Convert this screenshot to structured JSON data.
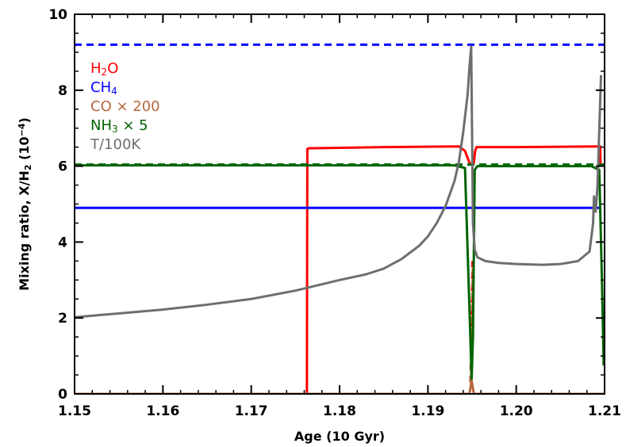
{
  "chart_data": {
    "type": "line",
    "title": "",
    "xlabel": "Age (10 Gyr)",
    "ylabel_parts": [
      "Mixing ratio, X/H",
      "2",
      " (10",
      "−4",
      ")"
    ],
    "xlim": [
      1.15,
      1.21
    ],
    "ylim": [
      0,
      10
    ],
    "xticks": [
      1.15,
      1.16,
      1.17,
      1.18,
      1.19,
      1.2,
      1.21
    ],
    "xtick_labels": [
      "1.15",
      "1.16",
      "1.17",
      "1.18",
      "1.19",
      "1.20",
      "1.21"
    ],
    "yticks": [
      0,
      2,
      4,
      6,
      8,
      10
    ],
    "ytick_labels": [
      "0",
      "2",
      "4",
      "6",
      "8",
      "10"
    ],
    "legend_position": "top-left",
    "series": [
      {
        "name": "H2O",
        "label_parts": [
          "H",
          "2",
          "O"
        ],
        "color": "#ff0000",
        "dash": false,
        "x": [
          1.15,
          1.1763,
          1.17635,
          1.1765,
          1.185,
          1.1935,
          1.1942,
          1.1946,
          1.1948,
          1.1952,
          1.19535,
          1.1955,
          1.2,
          1.2095,
          1.20955
        ],
        "y": [
          0,
          0,
          6.45,
          6.47,
          6.5,
          6.52,
          6.4,
          6.15,
          6.05,
          6.08,
          6.4,
          6.5,
          6.5,
          6.52,
          6.05
        ]
      },
      {
        "name": "H2O dashed",
        "color": "#ff0000",
        "dash": true,
        "x": [
          1.1949,
          1.19505
        ],
        "y": [
          0.2,
          3.5
        ]
      },
      {
        "name": "CH4",
        "label_parts": [
          "CH",
          "4"
        ],
        "color": "#0000ff",
        "dash": false,
        "x": [
          1.15,
          1.2095
        ],
        "y": [
          4.9,
          4.9
        ]
      },
      {
        "name": "CH4 dashed",
        "color": "#0000ff",
        "dash": true,
        "x": [
          1.15,
          1.21
        ],
        "y": [
          9.2,
          9.2
        ]
      },
      {
        "name": "CO × 200",
        "label_parts": [
          "CO × 200"
        ],
        "color": "#b8673e",
        "dash": false,
        "x": [
          1.15,
          1.1947,
          1.19495,
          1.1952,
          1.21
        ],
        "y": [
          0,
          0,
          0.35,
          0,
          0
        ]
      },
      {
        "name": "CO dashed",
        "color": "#b8673e",
        "dash": true,
        "x": [
          1.1948,
          1.1951
        ],
        "y": [
          0.3,
          3.4
        ]
      },
      {
        "name": "NH3 × 5",
        "label_parts": [
          "NH",
          "3",
          " × 5"
        ],
        "color": "#006400",
        "dash": false,
        "x": [
          1.15,
          1.193,
          1.1942,
          1.1946,
          1.19495,
          1.1951,
          1.1953,
          1.1956,
          1.2085,
          1.2094,
          1.2097,
          1.2099
        ],
        "y": [
          6.02,
          6.02,
          5.95,
          3.0,
          0.4,
          1.5,
          5.9,
          6.0,
          6.0,
          5.9,
          3.0,
          0.75
        ]
      },
      {
        "name": "NH3 dashed",
        "color": "#006400",
        "dash": true,
        "x": [
          1.15,
          1.21
        ],
        "y": [
          6.04,
          6.04
        ]
      },
      {
        "name": "T/100K",
        "label_parts": [
          "T/100K"
        ],
        "color": "#6e6e6e",
        "dash": false,
        "x": [
          1.15,
          1.155,
          1.16,
          1.165,
          1.17,
          1.175,
          1.18,
          1.183,
          1.185,
          1.187,
          1.189,
          1.19,
          1.191,
          1.192,
          1.193,
          1.1935,
          1.194,
          1.1945,
          1.1947,
          1.1949,
          1.1951,
          1.1953,
          1.1956,
          1.1965,
          1.198,
          1.2,
          1.203,
          1.205,
          1.207,
          1.2083,
          1.2087,
          1.2088,
          1.209,
          1.2092,
          1.2096
        ],
        "y": [
          2.02,
          2.12,
          2.22,
          2.35,
          2.5,
          2.72,
          3.0,
          3.15,
          3.3,
          3.55,
          3.9,
          4.15,
          4.5,
          4.95,
          5.6,
          6.1,
          6.9,
          7.9,
          8.6,
          9.15,
          4.5,
          3.8,
          3.6,
          3.5,
          3.45,
          3.42,
          3.4,
          3.42,
          3.5,
          3.75,
          4.5,
          5.2,
          4.8,
          5.5,
          8.4
        ]
      }
    ]
  }
}
